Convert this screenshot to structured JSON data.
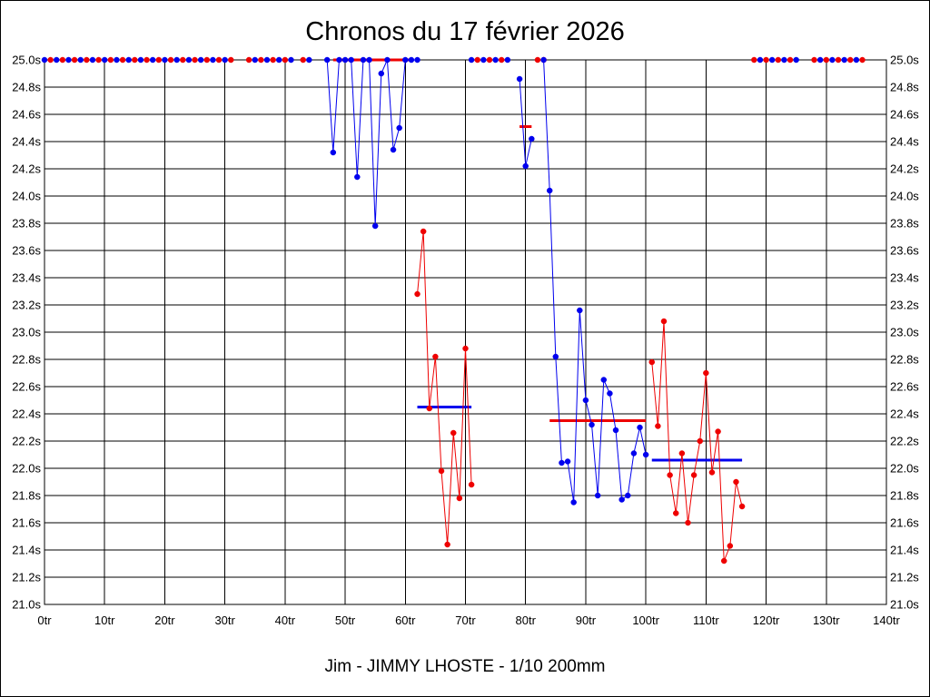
{
  "chart_data": {
    "type": "line",
    "title": "Chronos du 17 février 2026",
    "subtitle": "Jim - JIMMY LHOSTE - 1/10 200mm",
    "xlabel": "",
    "ylabel": "",
    "xlim": [
      0,
      140
    ],
    "ylim": [
      21.0,
      25.0
    ],
    "grid": true,
    "x_ticks": [
      0,
      10,
      20,
      30,
      40,
      50,
      60,
      70,
      80,
      90,
      100,
      110,
      120,
      130,
      140
    ],
    "x_tick_labels": [
      "0tr",
      "10tr",
      "20tr",
      "30tr",
      "40tr",
      "50tr",
      "60tr",
      "70tr",
      "80tr",
      "90tr",
      "100tr",
      "110tr",
      "120tr",
      "130tr",
      "140tr"
    ],
    "y_ticks": [
      21.0,
      21.2,
      21.4,
      21.6,
      21.8,
      22.0,
      22.2,
      22.4,
      22.6,
      22.8,
      23.0,
      23.2,
      23.4,
      23.6,
      23.8,
      24.0,
      24.2,
      24.4,
      24.6,
      24.8,
      25.0
    ],
    "y_tick_labels": [
      "21.0s",
      "21.2s",
      "21.4s",
      "21.6s",
      "21.8s",
      "22.0s",
      "22.2s",
      "22.4s",
      "22.6s",
      "22.8s",
      "23.0s",
      "23.2s",
      "23.4s",
      "23.6s",
      "23.8s",
      "24.0s",
      "24.2s",
      "24.4s",
      "24.6s",
      "24.8s",
      "25.0s"
    ],
    "series": [
      {
        "color": "#0000ee",
        "x": [
          0,
          1,
          2,
          3,
          4,
          5,
          6,
          7,
          8,
          9,
          10,
          11,
          12,
          13,
          14,
          15,
          16,
          17,
          18,
          19,
          20,
          21,
          22,
          23,
          24,
          25,
          26,
          27,
          28,
          29,
          30,
          31
        ],
        "y": [
          25,
          25,
          25,
          25,
          25,
          25,
          25,
          25,
          25,
          25,
          25,
          25,
          25,
          25,
          25,
          25,
          25,
          25,
          25,
          25,
          25,
          25,
          25,
          25,
          25,
          25,
          25,
          25,
          25,
          25,
          25,
          25
        ],
        "marker_colors": [
          "#0000ee",
          "#ee0000"
        ],
        "connected": false
      },
      {
        "color": "#ee0000",
        "x": [
          34,
          35,
          36,
          37,
          38,
          39,
          40,
          41,
          43,
          44
        ],
        "y": [
          25,
          25,
          25,
          25,
          25,
          25,
          25,
          25,
          25,
          25
        ],
        "marker_colors": [
          "#ee0000",
          "#0000ee"
        ],
        "connected": false
      },
      {
        "color": "#0000ee",
        "x": [
          47,
          48,
          49,
          50,
          51,
          52,
          53,
          54,
          55,
          56,
          57,
          58,
          59,
          60,
          61,
          62
        ],
        "y": [
          25.0,
          24.32,
          25.0,
          25.0,
          25.0,
          24.14,
          25.0,
          25.0,
          23.78,
          24.9,
          25.0,
          24.34,
          24.5,
          25.0,
          25.0,
          25.0
        ],
        "marker_colors": [
          "#0000ee"
        ],
        "connected": true
      },
      {
        "color": "#ee0000",
        "x": [
          62,
          63,
          64,
          65,
          66,
          67,
          68,
          69,
          70,
          71
        ],
        "y": [
          23.28,
          23.74,
          22.44,
          22.82,
          21.98,
          21.44,
          22.26,
          21.78,
          22.88,
          21.88
        ],
        "marker_colors": [
          "#ee0000"
        ],
        "connected": true
      },
      {
        "color": "#0000ee",
        "x": [
          71,
          72,
          73,
          74,
          75,
          76,
          77
        ],
        "y": [
          25,
          25,
          25,
          25,
          25,
          25,
          25
        ],
        "marker_colors": [
          "#0000ee",
          "#ee0000"
        ],
        "connected": false
      },
      {
        "color": "#0000ee",
        "x": [
          79,
          80,
          81
        ],
        "y": [
          24.86,
          24.22,
          24.42
        ],
        "marker_colors": [
          "#0000ee"
        ],
        "connected": true
      },
      {
        "color": "#ee0000",
        "x": [
          82,
          83
        ],
        "y": [
          25,
          25
        ],
        "marker_colors": [
          "#ee0000"
        ],
        "connected": false
      },
      {
        "color": "#0000ee",
        "x": [
          83,
          84,
          85,
          86,
          87,
          88,
          89,
          90,
          91,
          92,
          93,
          94,
          95,
          96,
          97,
          98,
          99,
          100
        ],
        "y": [
          25.0,
          24.04,
          22.82,
          22.04,
          22.05,
          21.75,
          23.16,
          22.5,
          22.32,
          21.8,
          22.65,
          22.55,
          22.28,
          21.77,
          21.8,
          22.11,
          22.3,
          22.1
        ],
        "marker_colors": [
          "#0000ee"
        ],
        "connected": true
      },
      {
        "color": "#ee0000",
        "x": [
          101,
          102,
          103,
          104,
          105,
          106,
          107,
          108,
          109,
          110,
          111,
          112,
          113,
          114,
          115,
          116
        ],
        "y": [
          22.78,
          22.31,
          23.08,
          21.95,
          21.67,
          22.11,
          21.6,
          21.95,
          22.2,
          22.7,
          21.97,
          22.27,
          21.32,
          21.43,
          21.9,
          21.72
        ],
        "marker_colors": [
          "#ee0000"
        ],
        "connected": true
      },
      {
        "color": "#ee0000",
        "x": [
          118,
          119,
          120,
          121,
          122,
          123,
          124,
          125,
          128,
          129,
          130,
          131,
          132,
          133,
          134,
          135,
          136
        ],
        "y": [
          25,
          25,
          25,
          25,
          25,
          25,
          25,
          25,
          25,
          25,
          25,
          25,
          25,
          25,
          25,
          25,
          25
        ],
        "marker_colors": [
          "#ee0000",
          "#0000ee"
        ],
        "connected": false
      }
    ],
    "average_lines": [
      {
        "color": "#ee0000",
        "x0": 48,
        "x1": 61,
        "y": 25.0
      },
      {
        "color": "#0000ee",
        "x0": 62,
        "x1": 71,
        "y": 22.45
      },
      {
        "color": "#ee0000",
        "x0": 79,
        "x1": 81,
        "y": 24.51
      },
      {
        "color": "#ee0000",
        "x0": 84,
        "x1": 100,
        "y": 22.35
      },
      {
        "color": "#0000ee",
        "x0": 101,
        "x1": 116,
        "y": 22.06
      }
    ],
    "colors": {
      "blue": "#0000ee",
      "red": "#ee0000",
      "grid": "#000000",
      "background": "#ffffff"
    }
  }
}
